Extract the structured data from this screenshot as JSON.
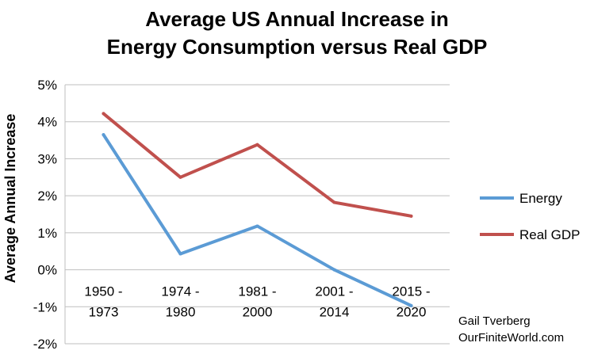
{
  "chart_data": {
    "type": "line",
    "title": [
      "Average US Annual Increase in",
      "Energy Consumption versus Real GDP"
    ],
    "xlabel": "",
    "ylabel": "Average Annual Increase",
    "categories": [
      [
        "1950 -",
        "1973"
      ],
      [
        "1974 -",
        "1980"
      ],
      [
        "1981 -",
        "2000"
      ],
      [
        "2001 -",
        "2014"
      ],
      [
        "2015 -",
        "2020"
      ]
    ],
    "ylim": [
      -2,
      5
    ],
    "yticks": [
      -2,
      -1,
      0,
      1,
      2,
      3,
      4,
      5
    ],
    "ytick_labels": [
      "-2%",
      "-1%",
      "0%",
      "1%",
      "2%",
      "3%",
      "4%",
      "5%"
    ],
    "grid": true,
    "legend_position": "right",
    "series": [
      {
        "name": "Energy",
        "color": "#5b9bd5",
        "values": [
          3.65,
          0.43,
          1.18,
          0.0,
          -0.97
        ]
      },
      {
        "name": "Real GDP",
        "color": "#c0504d",
        "values": [
          4.22,
          2.5,
          3.38,
          1.82,
          1.45
        ]
      }
    ]
  },
  "credit": {
    "line1": "Gail Tverberg",
    "line2": "OurFiniteWorld.com"
  }
}
